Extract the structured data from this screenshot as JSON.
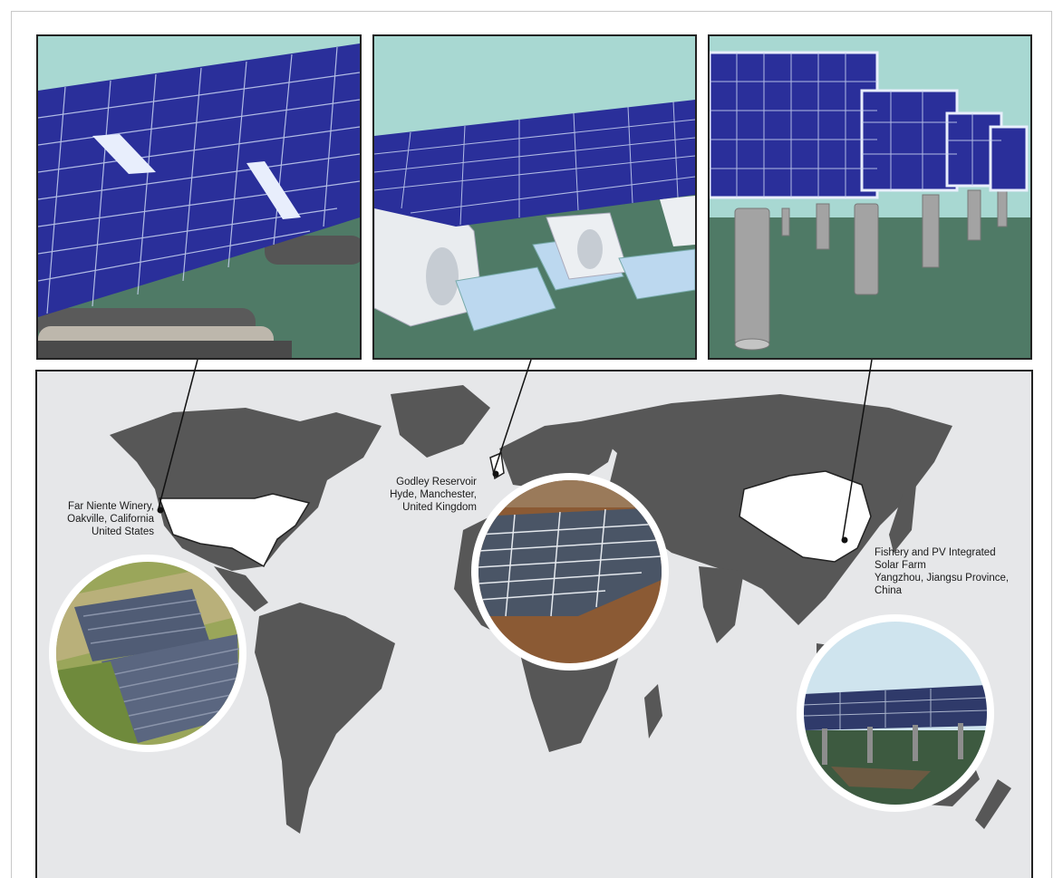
{
  "locations": [
    {
      "id": "california",
      "lines": [
        "Far Niente Winery,",
        "Oakville, California",
        "United States"
      ],
      "align": "right"
    },
    {
      "id": "manchester",
      "lines": [
        "Godley Reservoir",
        "Hyde, Manchester,",
        "United Kingdom"
      ],
      "align": "right"
    },
    {
      "id": "yangzhou",
      "lines": [
        "Fishery and PV Integrated",
        "Solar Farm",
        "Yangzhou, Jiangsu Province,",
        "China"
      ],
      "align": "left"
    }
  ],
  "colors": {
    "sky": "#a8d8d2",
    "water": "#4f7a66",
    "panel_blue": "#2a2f9a",
    "panel_grid": "#c9d4f2",
    "map_land": "#575757",
    "map_ocean": "#e6e7e9",
    "highlight_land": "#ffffff"
  },
  "icons": [
    "pontoon-icon",
    "float-icon",
    "pillar-icon",
    "location-dot-icon"
  ]
}
